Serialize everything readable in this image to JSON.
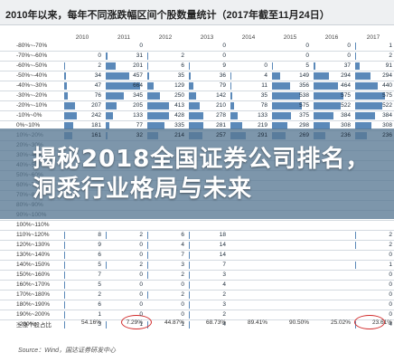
{
  "header": {
    "title": "2010年以来，每年不同涨跌幅区间个股数量统计（2017年截至11月24日）"
  },
  "years": [
    "2010",
    "2011",
    "2012",
    "2013",
    "2014",
    "2015",
    "2016",
    "2017"
  ],
  "rows": [
    {
      "label": "-80%~-70%",
      "values": [
        "",
        "0",
        "",
        "0",
        "",
        "0",
        "0",
        "1"
      ]
    },
    {
      "label": "-70%~-60%",
      "values": [
        "0",
        "31",
        "2",
        "0",
        "",
        "0",
        "0",
        "2"
      ]
    },
    {
      "label": "-60%~-50%",
      "values": [
        "2",
        "201",
        "6",
        "9",
        "0",
        "5",
        "37",
        "91"
      ]
    },
    {
      "label": "-50%~-40%",
      "values": [
        "34",
        "457",
        "35",
        "36",
        "4",
        "149",
        "294",
        "294"
      ]
    },
    {
      "label": "-40%~-30%",
      "values": [
        "47",
        "664",
        "129",
        "79",
        "11",
        "356",
        "464",
        "440"
      ]
    },
    {
      "label": "-30%~-20%",
      "values": [
        "76",
        "345",
        "250",
        "142",
        "35",
        "538",
        "575",
        "575"
      ]
    },
    {
      "label": "-20%~-10%",
      "values": [
        "207",
        "205",
        "413",
        "210",
        "78",
        "575",
        "522",
        "522"
      ]
    },
    {
      "label": "-10%~0%",
      "values": [
        "242",
        "133",
        "428",
        "278",
        "133",
        "375",
        "384",
        "384"
      ]
    },
    {
      "label": "0%~10%",
      "values": [
        "181",
        "77",
        "335",
        "281",
        "219",
        "298",
        "308",
        "308"
      ]
    },
    {
      "label": "10%~20%",
      "values": [
        "161",
        "32",
        "214",
        "257",
        "291",
        "269",
        "236",
        "236"
      ]
    },
    {
      "label": "20%~30%",
      "values": [
        "",
        "",
        "",
        "",
        "",
        "",
        "",
        ""
      ]
    },
    {
      "label": "30%~40%",
      "values": [
        "",
        "",
        "",
        "",
        "",
        "",
        "",
        ""
      ]
    },
    {
      "label": "40%~50%",
      "values": [
        "",
        "",
        "",
        "",
        "",
        "",
        "",
        ""
      ]
    },
    {
      "label": "50%~60%",
      "values": [
        "",
        "",
        "",
        "",
        "",
        "",
        "",
        ""
      ]
    },
    {
      "label": "60%~70%",
      "values": [
        "",
        "",
        "",
        "",
        "",
        "",
        "",
        ""
      ]
    },
    {
      "label": "70%~80%",
      "values": [
        "",
        "",
        "",
        "",
        "",
        "",
        "",
        ""
      ]
    },
    {
      "label": "80%~90%",
      "values": [
        "",
        "",
        "",
        "",
        "",
        "",
        "",
        ""
      ]
    },
    {
      "label": "90%~100%",
      "values": [
        "",
        "",
        "",
        "",
        "",
        "",
        "",
        ""
      ]
    },
    {
      "label": "100%~110%",
      "values": [
        "",
        "",
        "",
        "",
        "",
        "",
        "",
        ""
      ]
    },
    {
      "label": "110%~120%",
      "values": [
        "8",
        "2",
        "6",
        "18",
        "",
        "",
        "",
        "2"
      ]
    },
    {
      "label": "120%~130%",
      "values": [
        "9",
        "0",
        "4",
        "14",
        "",
        "",
        "",
        "2"
      ]
    },
    {
      "label": "130%~140%",
      "values": [
        "6",
        "0",
        "7",
        "14",
        "",
        "",
        "",
        "0"
      ]
    },
    {
      "label": "140%~150%",
      "values": [
        "5",
        "2",
        "3",
        "7",
        "",
        "",
        "",
        "1"
      ]
    },
    {
      "label": "150%~160%",
      "values": [
        "7",
        "0",
        "2",
        "3",
        "",
        "",
        "",
        "0"
      ]
    },
    {
      "label": "160%~170%",
      "values": [
        "5",
        "0",
        "0",
        "4",
        "",
        "",
        "",
        "0"
      ]
    },
    {
      "label": "170%~180%",
      "values": [
        "2",
        "0",
        "2",
        "2",
        "",
        "",
        "",
        "0"
      ]
    },
    {
      "label": "180%~190%",
      "values": [
        "6",
        "0",
        "0",
        "3",
        "",
        "",
        "",
        "0"
      ]
    },
    {
      "label": "190%~200%",
      "values": [
        "1",
        "0",
        "0",
        "2",
        "",
        "",
        "",
        "0"
      ]
    },
    {
      "label": ">200%",
      "values": [
        "3",
        "1",
        "1",
        "4",
        "",
        "",
        "",
        "4"
      ]
    }
  ],
  "up_ratio": {
    "label": "上涨个股占比",
    "values": [
      "54.16%",
      "7.29%",
      "44.87%",
      "68.73%",
      "89.41%",
      "90.50%",
      "25.02%",
      "23.61%"
    ]
  },
  "source": "Source：Wind，国达证券研发中心",
  "banner": {
    "title": "揭秘2018全国证券公司排名，洞悉行业格局与未来"
  },
  "colors": {
    "bar": "#5b89b9",
    "banner_overlay": "#587894",
    "highlight_circle": "#d22c2c"
  }
}
